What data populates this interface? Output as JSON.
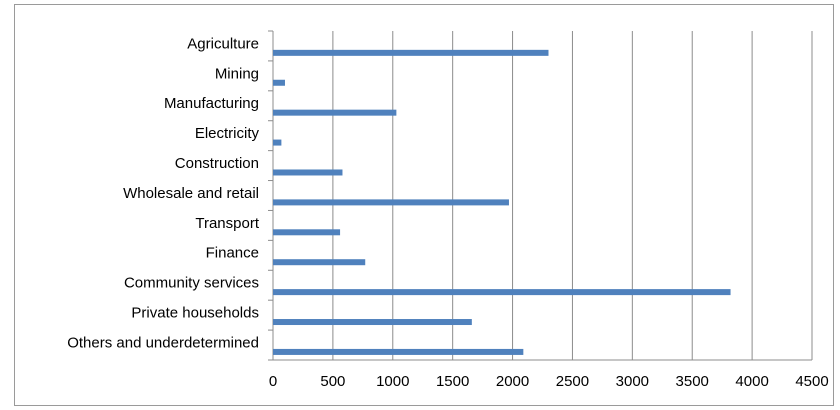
{
  "chart_data": {
    "type": "bar",
    "orientation": "horizontal",
    "title": "",
    "xlabel": "",
    "ylabel": "",
    "categories": [
      "Agriculture",
      "Mining",
      "Manufacturing",
      "Electricity",
      "Construction",
      "Wholesale and retail",
      "Transport",
      "Finance",
      "Community services",
      "Private households",
      "Others and underdetermined"
    ],
    "values": [
      2300,
      100,
      1030,
      70,
      580,
      1970,
      560,
      770,
      3820,
      1660,
      2090
    ],
    "xlim": [
      0,
      4500
    ],
    "x_ticks": [
      "0",
      "500",
      "1000",
      "1500",
      "2000",
      "2500",
      "3000",
      "3500",
      "4000",
      "4500"
    ],
    "grid": "vertical",
    "legend": "none",
    "bar_color": "#4f81bd",
    "gridline_color": "#8c8c8c"
  }
}
